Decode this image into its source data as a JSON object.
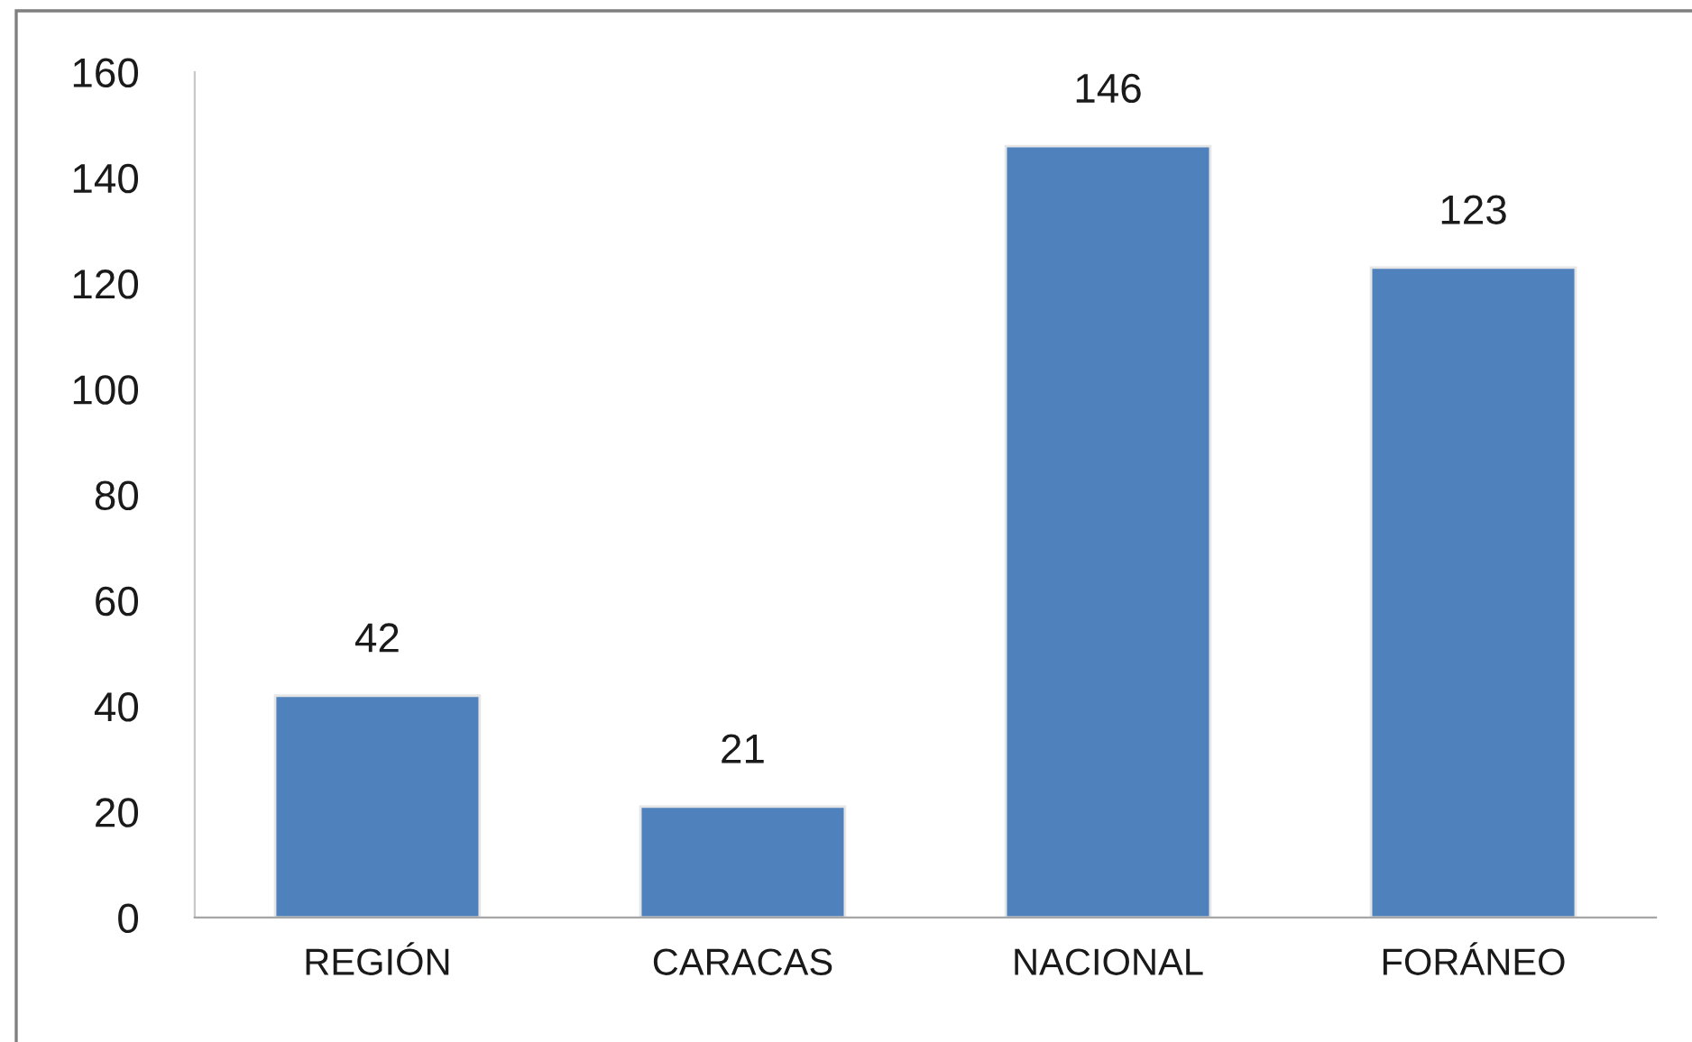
{
  "chart_data": {
    "type": "bar",
    "categories": [
      "REGIÓN",
      "CARACAS",
      "NACIONAL",
      "FORÁNEO"
    ],
    "values": [
      42,
      21,
      146,
      123
    ],
    "color": "#4f81bd",
    "ylim": [
      0,
      160
    ],
    "yticks": [
      0,
      20,
      40,
      60,
      80,
      100,
      120,
      140,
      160
    ],
    "data_labels": true,
    "grid": false,
    "legend": false
  }
}
